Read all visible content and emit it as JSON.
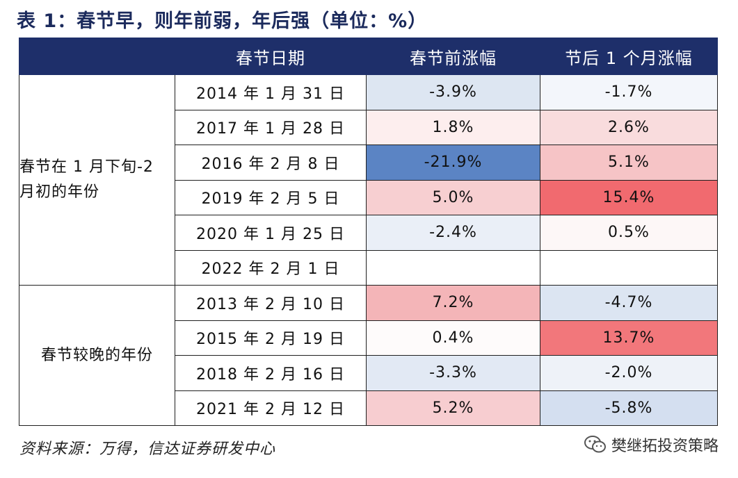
{
  "title": "表 1：春节早，则年前弱，年后强（单位：%）",
  "table": {
    "headers": [
      "",
      "春节日期",
      "春节前涨幅",
      "节后 1 个月涨幅"
    ],
    "groups": [
      {
        "label": "春节在 1 月下旬-2 月初的年份",
        "rows": [
          {
            "date": "2014 年 1 月 31 日",
            "pre": "-3.9%",
            "post": "-1.7%",
            "pre_color": "#dde6f2",
            "post_color": "#f3f6fb"
          },
          {
            "date": "2017 年 1 月 28 日",
            "pre": "1.8%",
            "post": "2.6%",
            "pre_color": "#fdeeee",
            "post_color": "#f9dcdd"
          },
          {
            "date": "2016 年 2 月 8 日",
            "pre": "-21.9%",
            "post": "5.1%",
            "pre_color": "#5b84c4",
            "post_color": "#f6c4c6"
          },
          {
            "date": "2019 年 2 月 5 日",
            "pre": "5.0%",
            "post": "15.4%",
            "pre_color": "#f7cfd1",
            "post_color": "#f16a6f"
          },
          {
            "date": "2020 年 1 月 25 日",
            "pre": "-2.4%",
            "post": "0.5%",
            "pre_color": "#eaeff7",
            "post_color": "#fdf7f7"
          },
          {
            "date": "2022 年 2 月 1 日",
            "pre": "",
            "post": "",
            "pre_color": "#ffffff",
            "post_color": "#ffffff"
          }
        ]
      },
      {
        "label": "春节较晚的年份",
        "rows": [
          {
            "date": "2013 年 2 月 10 日",
            "pre": "7.2%",
            "post": "-4.7%",
            "pre_color": "#f4b5b8",
            "post_color": "#dce5f2"
          },
          {
            "date": "2015 年 2 月 19 日",
            "pre": "0.4%",
            "post": "13.7%",
            "pre_color": "#fefbfb",
            "post_color": "#f2777b"
          },
          {
            "date": "2018 年 2 月 16 日",
            "pre": "-3.3%",
            "post": "-2.0%",
            "pre_color": "#e2e9f4",
            "post_color": "#eef2f8"
          },
          {
            "date": "2021 年 2 月 12 日",
            "pre": "5.2%",
            "post": "-5.8%",
            "pre_color": "#f7cdd0",
            "post_color": "#d4dff0"
          }
        ]
      }
    ]
  },
  "source": "资料来源：万得，信达证券研发中心",
  "watermark": {
    "icon": "wechat-icon",
    "text": "樊继拓投资策略"
  }
}
